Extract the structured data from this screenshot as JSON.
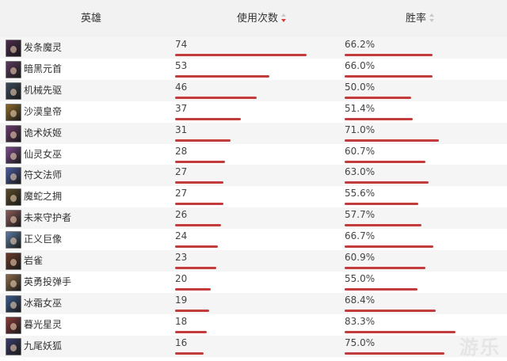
{
  "header": {
    "hero_label": "英雄",
    "usage_label": "使用次数",
    "winrate_label": "胜率"
  },
  "rows": [
    {
      "name": "发条魔灵",
      "usage": "74",
      "winrate": "66.2%",
      "avatar_color": "#4a2a4a"
    },
    {
      "name": "暗黑元首",
      "usage": "53",
      "winrate": "66.0%",
      "avatar_color": "#5a3a5c"
    },
    {
      "name": "机械先驱",
      "usage": "46",
      "winrate": "50.0%",
      "avatar_color": "#3a4a5a"
    },
    {
      "name": "沙漠皇帝",
      "usage": "37",
      "winrate": "51.4%",
      "avatar_color": "#8a6a2a"
    },
    {
      "name": "诡术妖姬",
      "usage": "31",
      "winrate": "71.0%",
      "avatar_color": "#6a3a6a"
    },
    {
      "name": "仙灵女巫",
      "usage": "28",
      "winrate": "60.7%",
      "avatar_color": "#7a4a8a"
    },
    {
      "name": "符文法师",
      "usage": "27",
      "winrate": "63.0%",
      "avatar_color": "#4a5aa0"
    },
    {
      "name": "魔蛇之拥",
      "usage": "27",
      "winrate": "55.6%",
      "avatar_color": "#5a4a2a"
    },
    {
      "name": "未来守护者",
      "usage": "26",
      "winrate": "57.7%",
      "avatar_color": "#8a5a5a"
    },
    {
      "name": "正义巨像",
      "usage": "24",
      "winrate": "66.7%",
      "avatar_color": "#5a7aa0"
    },
    {
      "name": "岩雀",
      "usage": "23",
      "winrate": "60.9%",
      "avatar_color": "#6a3a2a"
    },
    {
      "name": "英勇投弹手",
      "usage": "20",
      "winrate": "55.0%",
      "avatar_color": "#8a6a4a"
    },
    {
      "name": "冰霜女巫",
      "usage": "19",
      "winrate": "68.4%",
      "avatar_color": "#3a5a8a"
    },
    {
      "name": "暮光星灵",
      "usage": "18",
      "winrate": "83.3%",
      "avatar_color": "#8a3a3a"
    },
    {
      "name": "九尾妖狐",
      "usage": "16",
      "winrate": "75.0%",
      "avatar_color": "#3a3a6a"
    }
  ],
  "usage_max": 74,
  "colors": {
    "bar": "#c33b3b",
    "sort_active": "#d43c3c"
  },
  "watermark": "游乐"
}
